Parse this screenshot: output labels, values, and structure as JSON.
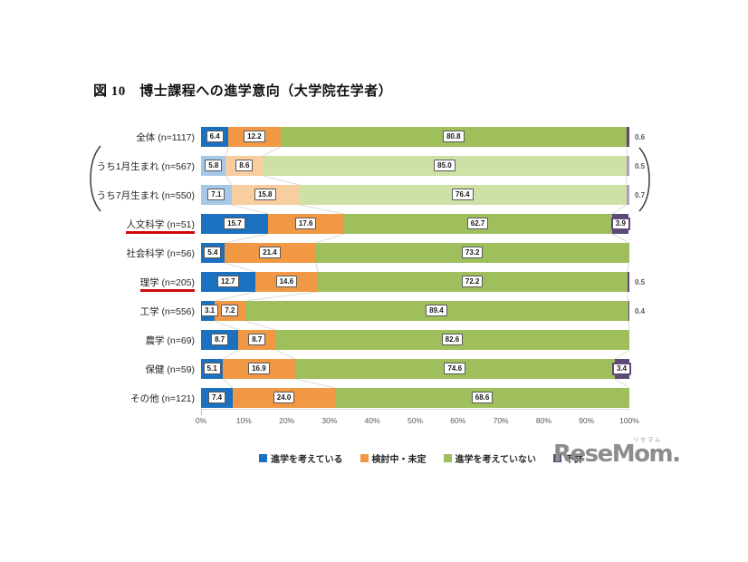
{
  "title": "図 10　博士課程への進学意向（大学院在学者）",
  "chart_data": {
    "type": "bar",
    "orientation": "horizontal",
    "stacked": true,
    "unit": "%",
    "xlim": [
      0,
      100
    ],
    "x_ticks": [
      "0%",
      "10%",
      "20%",
      "30%",
      "40%",
      "50%",
      "60%",
      "70%",
      "80%",
      "90%",
      "100%"
    ],
    "legend_position": "bottom",
    "categories": [
      "全体 (n=1117)",
      "うち1月生まれ (n=567)",
      "うち7月生まれ (n=550)",
      "人文科学 (n=51)",
      "社会科学 (n=56)",
      "理学 (n=205)",
      "工学 (n=556)",
      "農学 (n=69)",
      "保健 (n=59)",
      "その他 (n=121)"
    ],
    "series": [
      {
        "name": "進学を考えている",
        "color": "#1B70C0",
        "light_color": "#A6C8E8",
        "values": [
          6.4,
          5.8,
          7.1,
          15.7,
          5.4,
          12.7,
          3.1,
          8.7,
          5.1,
          7.4
        ]
      },
      {
        "name": "検討中・未定",
        "color": "#F09843",
        "light_color": "#F8CD9F",
        "values": [
          12.2,
          8.6,
          15.8,
          17.6,
          21.4,
          14.6,
          7.2,
          8.7,
          16.9,
          24.0
        ]
      },
      {
        "name": "進学を考えていない",
        "color": "#9FBF5C",
        "light_color": "#CDE0A6",
        "values": [
          80.8,
          85.0,
          76.4,
          62.7,
          73.2,
          72.2,
          89.4,
          82.6,
          74.6,
          68.6
        ]
      },
      {
        "name": "不詳",
        "color": "#5F497A",
        "light_color": "#ACA0BD",
        "values": [
          0.6,
          0.5,
          0.7,
          3.9,
          0.0,
          0.5,
          0.4,
          0.0,
          3.4,
          0.0
        ]
      }
    ],
    "light_rows": [
      1,
      2
    ],
    "red_underlined_rows": [
      3,
      5
    ],
    "outside_purple_label_rows": [
      0,
      1,
      2,
      5,
      6
    ],
    "boxed_purple_label_rows": [
      3,
      8
    ]
  },
  "colors": {
    "label_box_border": "#595959",
    "purple_box_border": "#5F497A",
    "red_underline": "#CF0A0A",
    "connector_line": "#DCDCD2"
  },
  "logo": {
    "text": "ReseMom.",
    "kana": "リセマム"
  }
}
